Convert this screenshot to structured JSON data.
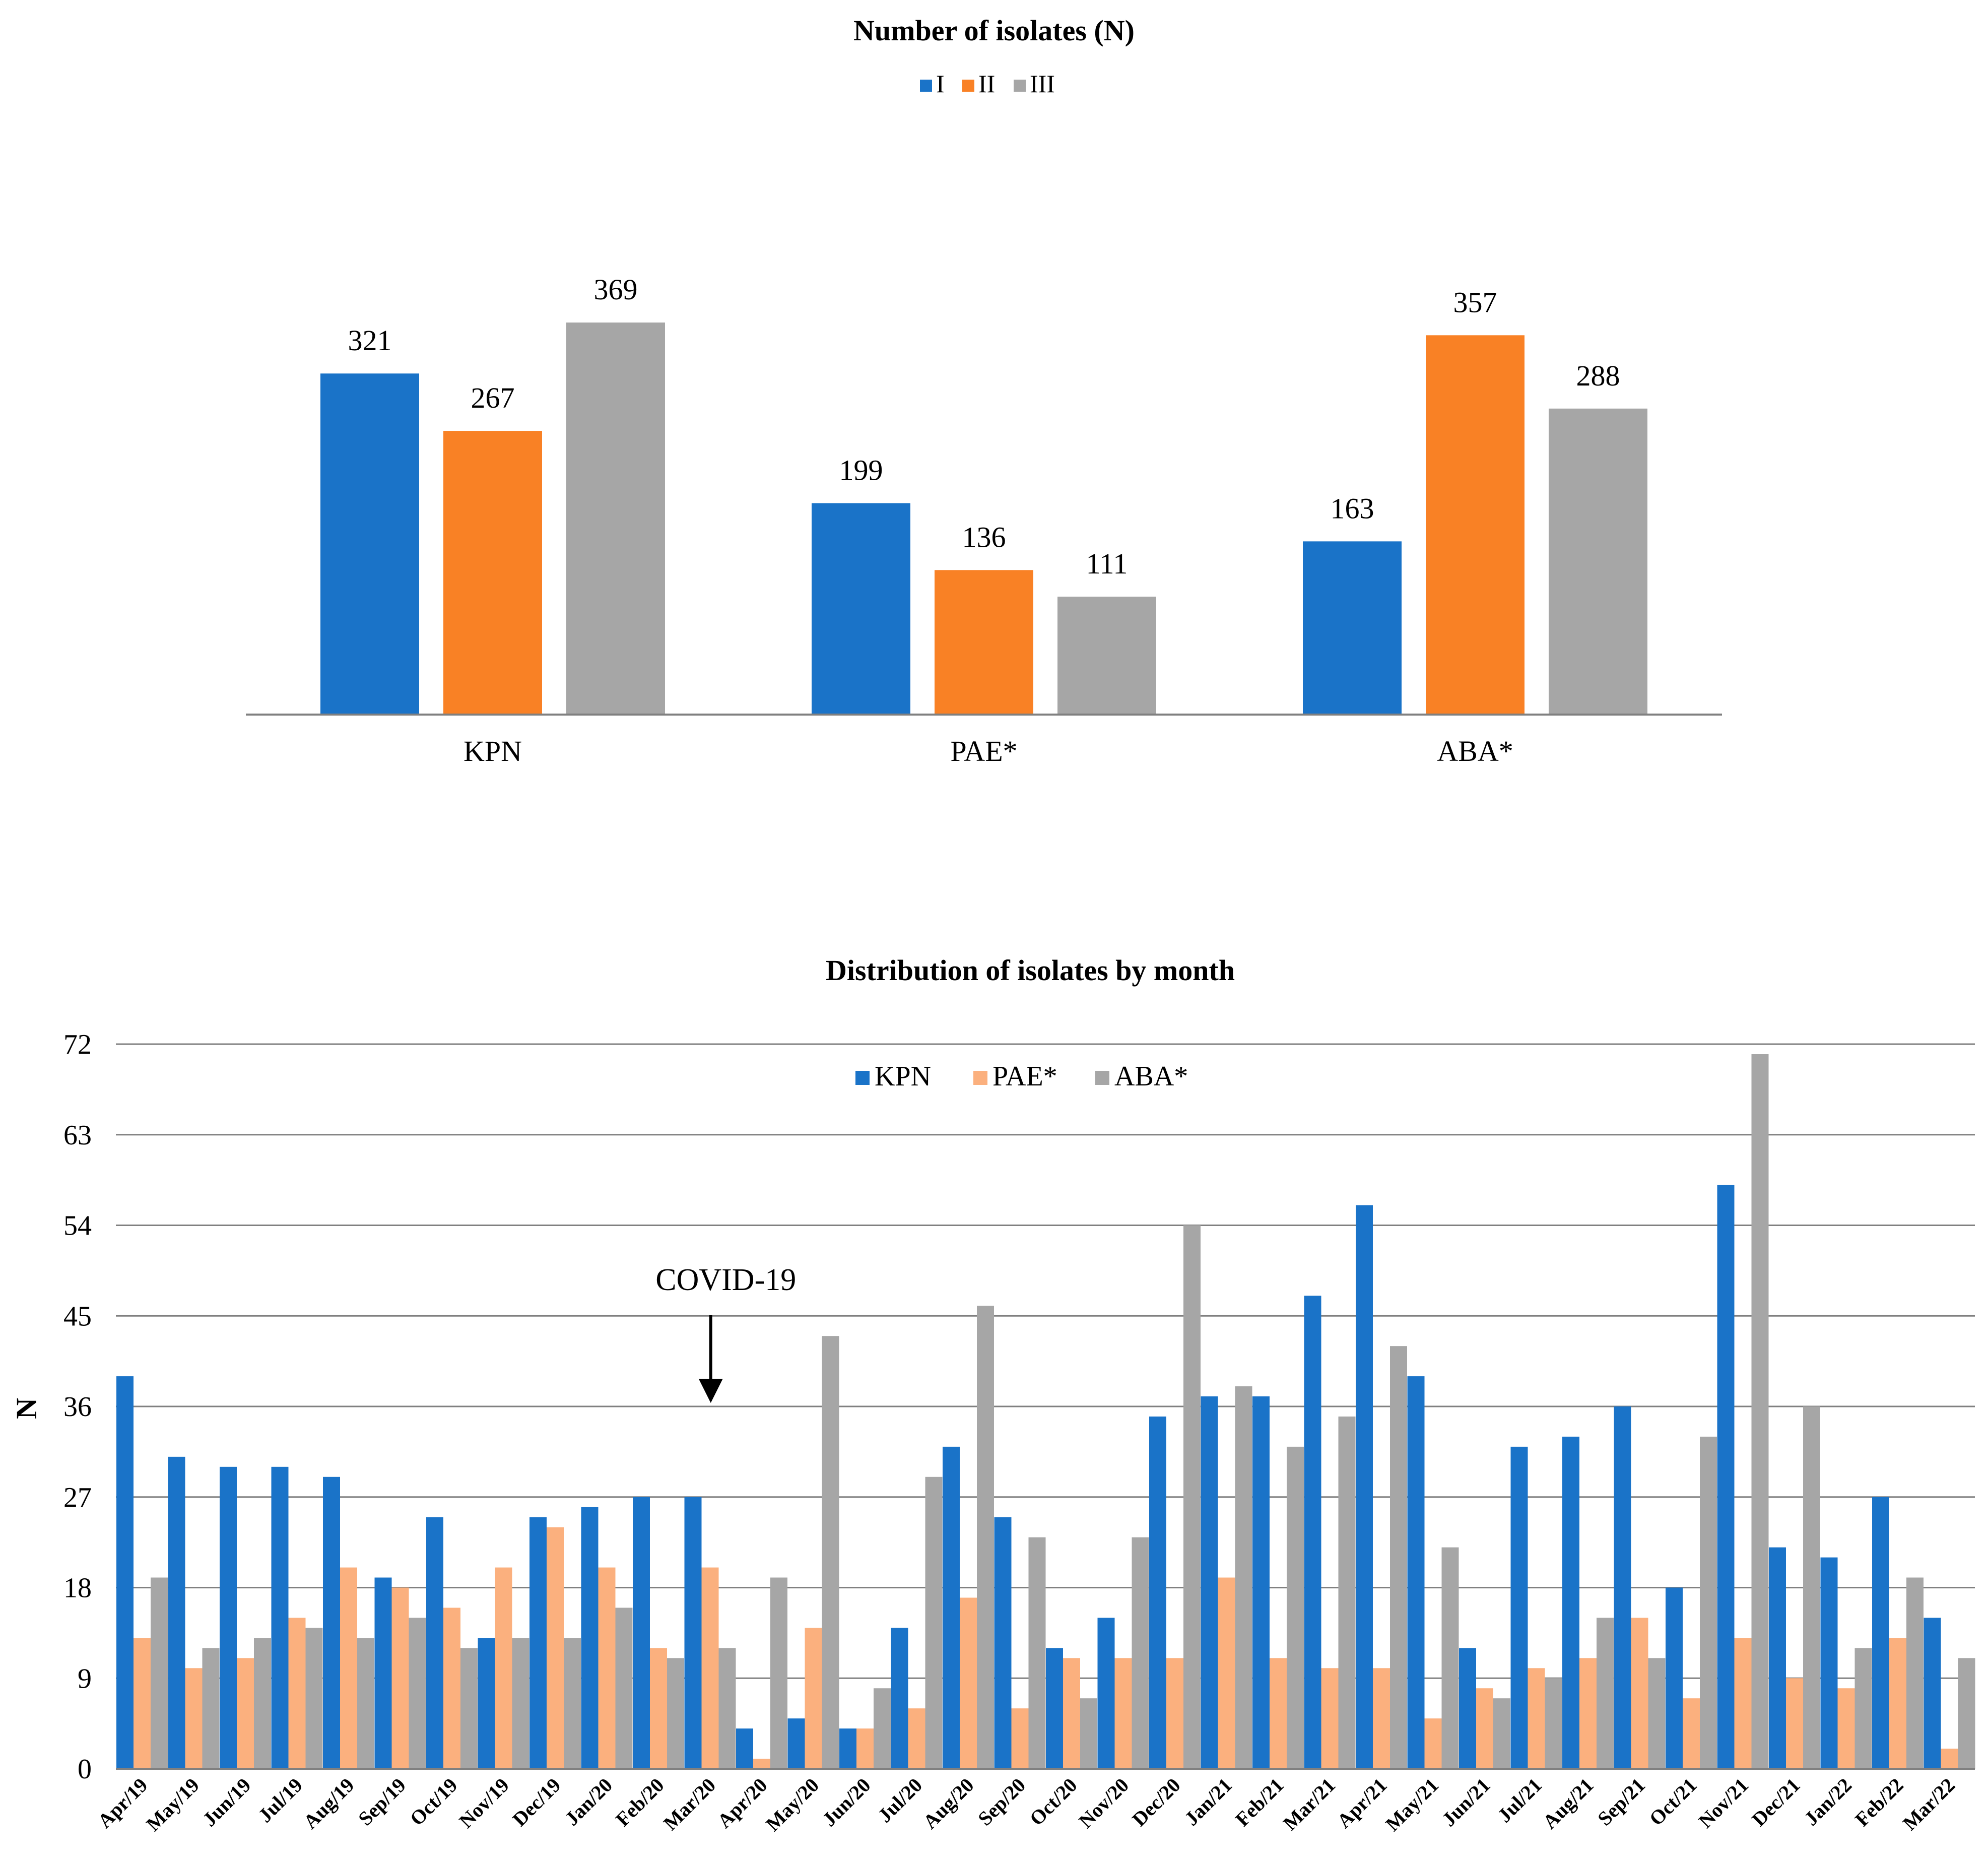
{
  "chart_data": [
    {
      "type": "bar",
      "title": "Number of isolates (N)",
      "categories": [
        "KPN",
        "PAE*",
        "ABA*"
      ],
      "series": [
        {
          "name": "I",
          "color": "#1a73c8",
          "values": [
            321,
            199,
            163
          ]
        },
        {
          "name": "II",
          "color": "#f98125",
          "values": [
            267,
            136,
            357
          ]
        },
        {
          "name": "III",
          "color": "#a6a6a6",
          "values": [
            369,
            111,
            288
          ]
        }
      ],
      "legend": "top-center",
      "ylim": [
        0,
        369
      ],
      "grid": false
    },
    {
      "type": "bar",
      "title": "Distribution of isolates by month",
      "ylabel": "N",
      "xlabel": "",
      "ylim": [
        0,
        72
      ],
      "yticks": [
        "0",
        "9",
        "18",
        "27",
        "36",
        "45",
        "54",
        "63",
        "72"
      ],
      "grid": true,
      "legend": "top-center",
      "annotation": {
        "text": "COVID-19",
        "category": "Mar/20"
      },
      "categories": [
        "Apr/19",
        "May/19",
        "Jun/19",
        "Jul/19",
        "Aug/19",
        "Sep/19",
        "Oct/19",
        "Nov/19",
        "Dec/19",
        "Jan/20",
        "Feb/20",
        "Mar/20",
        "Apr/20",
        "May/20",
        "Jun/20",
        "Jul/20",
        "Aug/20",
        "Sep/20",
        "Oct/20",
        "Nov/20",
        "Dec/20",
        "Jan/21",
        "Feb/21",
        "Mar/21",
        "Apr/21",
        "May/21",
        "Jun/21",
        "Jul/21",
        "Aug/21",
        "Sep/21",
        "Oct/21",
        "Nov/21",
        "Dec/21",
        "Jan/22",
        "Feb/22",
        "Mar/22"
      ],
      "series": [
        {
          "name": "KPN",
          "color": "#1a73c8",
          "values": [
            39,
            31,
            30,
            30,
            29,
            19,
            25,
            13,
            25,
            26,
            27,
            27,
            4,
            5,
            4,
            14,
            32,
            25,
            12,
            15,
            35,
            37,
            37,
            47,
            56,
            39,
            12,
            32,
            33,
            36,
            18,
            58,
            22,
            21,
            27,
            15
          ]
        },
        {
          "name": "PAE*",
          "color": "#fbb07e",
          "values": [
            13,
            10,
            11,
            15,
            20,
            18,
            16,
            20,
            24,
            20,
            12,
            20,
            1,
            14,
            4,
            6,
            17,
            6,
            11,
            11,
            11,
            19,
            11,
            10,
            10,
            5,
            8,
            10,
            11,
            15,
            7,
            13,
            9,
            8,
            13,
            2
          ]
        },
        {
          "name": "ABA*",
          "color": "#a6a6a6",
          "values": [
            19,
            12,
            13,
            14,
            13,
            15,
            12,
            13,
            13,
            16,
            11,
            12,
            19,
            43,
            8,
            29,
            46,
            23,
            7,
            23,
            54,
            38,
            32,
            35,
            42,
            22,
            7,
            9,
            15,
            11,
            33,
            71,
            36,
            12,
            19,
            11
          ]
        }
      ]
    }
  ]
}
